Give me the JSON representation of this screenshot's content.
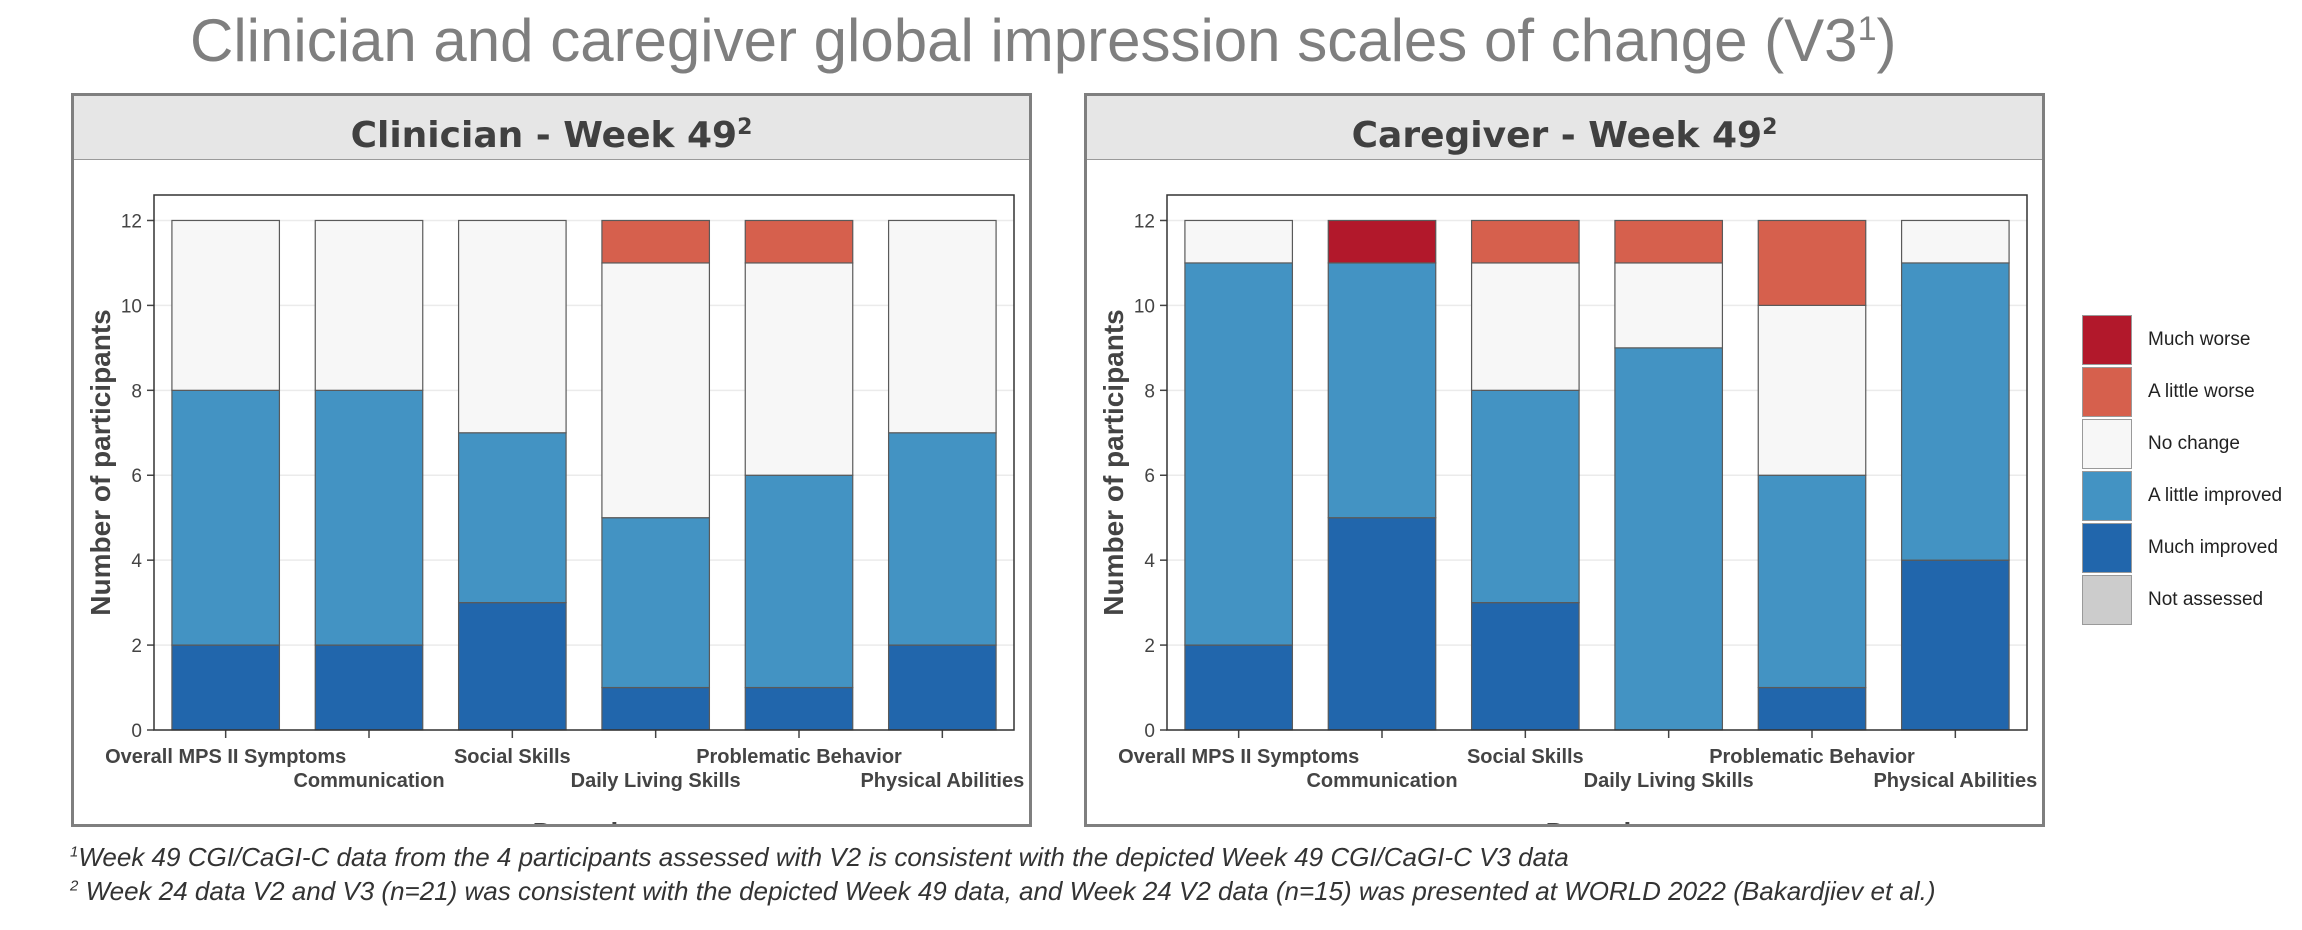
{
  "title": {
    "text": "Clinician and caregiver global impression scales of change (V3",
    "sup": "1",
    "suffix": ")"
  },
  "legend": [
    {
      "label": "Much worse",
      "color": "#b2182b"
    },
    {
      "label": "A little worse",
      "color": "#d6604d"
    },
    {
      "label": "No change",
      "color": "#f7f7f7"
    },
    {
      "label": "A little improved",
      "color": "#4393c3"
    },
    {
      "label": "Much improved",
      "color": "#2166ac"
    },
    {
      "label": "Not assessed",
      "color": "#cccccc"
    }
  ],
  "footnotes": [
    {
      "sup": "1",
      "text": "Week 49 CGI/CaGI-C data from the 4 participants assessed with V2 is consistent with the depicted Week 49 CGI/CaGI-C V3 data"
    },
    {
      "sup": "2",
      "text": " Week 24 data V2 and V3 (n=21) was consistent with the depicted Week 49 data, and Week 24 V2 data (n=15) was presented at WORLD 2022 (Bakardjiev et al.)"
    }
  ],
  "chart_data": [
    {
      "type": "bar",
      "stacked": true,
      "title": "Clinician - Week 49",
      "title_sup": "2",
      "xlabel": "Domain",
      "ylabel": "Number of participants",
      "ylim": [
        0,
        12.6
      ],
      "yticks": [
        0,
        2,
        4,
        6,
        8,
        10,
        12
      ],
      "categories": [
        "Overall MPS II Symptoms",
        "Communication",
        "Social Skills",
        "Daily Living Skills",
        "Problematic Behavior",
        "Physical Abilities"
      ],
      "series": [
        {
          "name": "Much improved",
          "color": "#2166ac",
          "values": [
            2,
            2,
            3,
            1,
            1,
            2
          ]
        },
        {
          "name": "A little improved",
          "color": "#4393c3",
          "values": [
            6,
            6,
            4,
            4,
            5,
            5
          ]
        },
        {
          "name": "No change",
          "color": "#f7f7f7",
          "values": [
            4,
            4,
            5,
            6,
            5,
            5
          ]
        },
        {
          "name": "A little worse",
          "color": "#d6604d",
          "values": [
            0,
            0,
            0,
            1,
            1,
            0
          ]
        },
        {
          "name": "Much worse",
          "color": "#b2182b",
          "values": [
            0,
            0,
            0,
            0,
            0,
            0
          ]
        },
        {
          "name": "Not assessed",
          "color": "#cccccc",
          "values": [
            0,
            0,
            0,
            0,
            0,
            0
          ]
        }
      ]
    },
    {
      "type": "bar",
      "stacked": true,
      "title": "Caregiver - Week 49",
      "title_sup": "2",
      "xlabel": "Domain",
      "ylabel": "Number of participants",
      "ylim": [
        0,
        12.6
      ],
      "yticks": [
        0,
        2,
        4,
        6,
        8,
        10,
        12
      ],
      "categories": [
        "Overall MPS II Symptoms",
        "Communication",
        "Social Skills",
        "Daily Living Skills",
        "Problematic Behavior",
        "Physical Abilities"
      ],
      "series": [
        {
          "name": "Much improved",
          "color": "#2166ac",
          "values": [
            2,
            5,
            3,
            0,
            1,
            4
          ]
        },
        {
          "name": "A little improved",
          "color": "#4393c3",
          "values": [
            9,
            6,
            5,
            9,
            5,
            7
          ]
        },
        {
          "name": "No change",
          "color": "#f7f7f7",
          "values": [
            1,
            0,
            3,
            2,
            4,
            1
          ]
        },
        {
          "name": "A little worse",
          "color": "#d6604d",
          "values": [
            0,
            0,
            1,
            1,
            2,
            0
          ]
        },
        {
          "name": "Much worse",
          "color": "#b2182b",
          "values": [
            0,
            1,
            0,
            0,
            0,
            0
          ]
        },
        {
          "name": "Not assessed",
          "color": "#cccccc",
          "values": [
            0,
            0,
            0,
            0,
            0,
            0
          ]
        }
      ]
    }
  ]
}
